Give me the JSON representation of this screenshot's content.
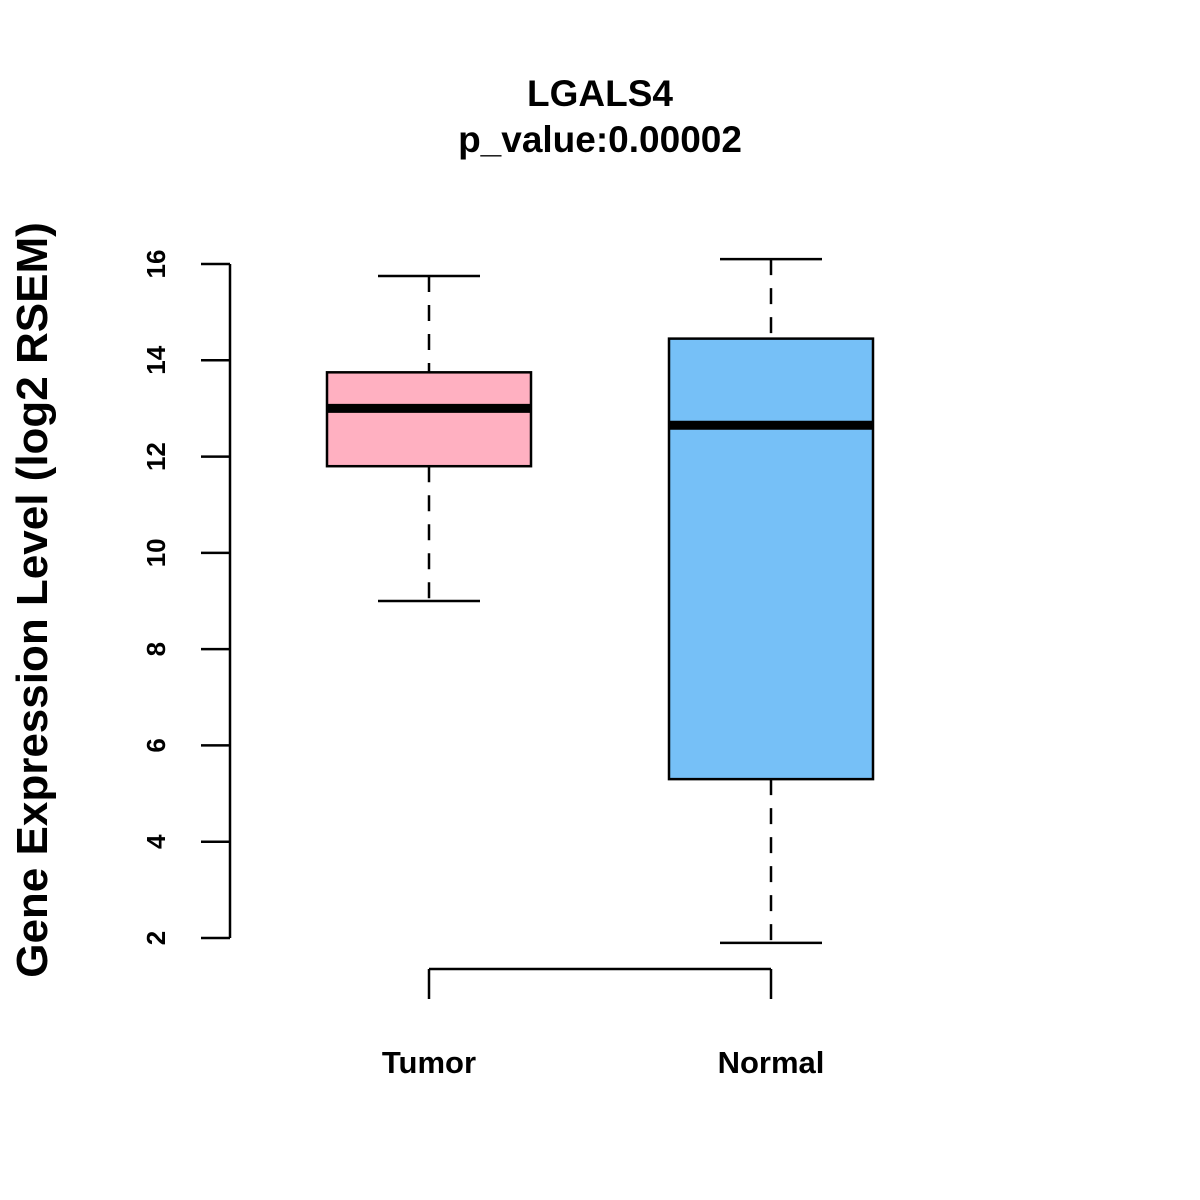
{
  "chart_data": {
    "type": "boxplot",
    "title": "LGALS4",
    "subtitle": "p_value:0.00002",
    "xlabel": "",
    "ylabel": "Gene Expression Level (log2 RSEM)",
    "ylim": [
      2,
      16
    ],
    "yticks": [
      2,
      4,
      6,
      8,
      10,
      12,
      14,
      16
    ],
    "grid": false,
    "categories": [
      "Tumor",
      "Normal"
    ],
    "boxes": [
      {
        "name": "Tumor",
        "color": "#FFB0C1",
        "whisker_low": 9.0,
        "q1": 11.8,
        "median": 13.0,
        "q3": 13.75,
        "whisker_high": 15.75
      },
      {
        "name": "Normal",
        "color": "#76C0F7",
        "whisker_low": 1.9,
        "q1": 5.3,
        "median": 12.65,
        "q3": 14.45,
        "whisker_high": 16.1
      }
    ]
  }
}
